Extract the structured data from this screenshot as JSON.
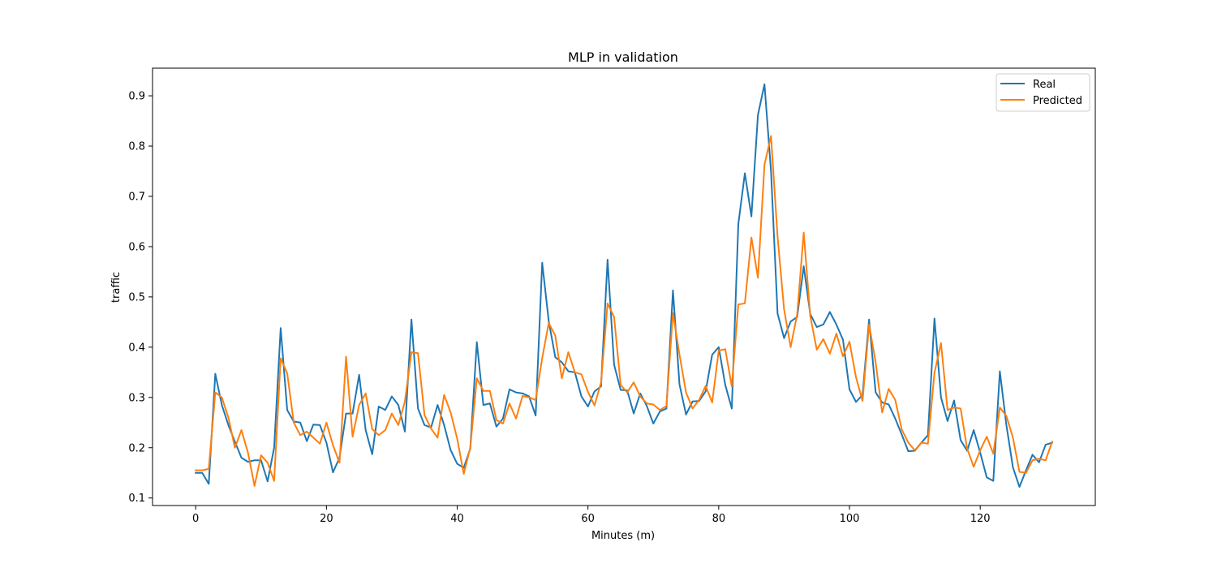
{
  "chart_data": {
    "type": "line",
    "title": "MLP in validation",
    "xlabel": "Minutes (m)",
    "ylabel": "traffic",
    "xlim": [
      -6.6,
      137.6
    ],
    "ylim": [
      0.085,
      0.955
    ],
    "xticks": [
      0,
      20,
      40,
      60,
      80,
      100,
      120
    ],
    "yticks": [
      0.1,
      0.2,
      0.3,
      0.4,
      0.5,
      0.6,
      0.7,
      0.8,
      0.9
    ],
    "legend_position": "top-right",
    "grid": false,
    "series": [
      {
        "name": "Real",
        "color": "#1f77b4",
        "values": [
          0.15,
          0.15,
          0.128,
          0.347,
          0.285,
          0.245,
          0.212,
          0.18,
          0.172,
          0.175,
          0.175,
          0.133,
          0.2,
          0.438,
          0.275,
          0.252,
          0.25,
          0.213,
          0.246,
          0.245,
          0.21,
          0.151,
          0.18,
          0.268,
          0.268,
          0.345,
          0.235,
          0.187,
          0.282,
          0.275,
          0.302,
          0.285,
          0.232,
          0.455,
          0.278,
          0.245,
          0.24,
          0.285,
          0.245,
          0.195,
          0.168,
          0.16,
          0.198,
          0.41,
          0.285,
          0.288,
          0.242,
          0.258,
          0.316,
          0.31,
          0.308,
          0.302,
          0.264,
          0.568,
          0.452,
          0.38,
          0.37,
          0.352,
          0.35,
          0.302,
          0.282,
          0.312,
          0.322,
          0.574,
          0.365,
          0.315,
          0.314,
          0.268,
          0.308,
          0.283,
          0.248,
          0.272,
          0.278,
          0.513,
          0.326,
          0.266,
          0.292,
          0.293,
          0.312,
          0.385,
          0.4,
          0.325,
          0.278,
          0.645,
          0.746,
          0.66,
          0.862,
          0.923,
          0.75,
          0.467,
          0.418,
          0.451,
          0.46,
          0.561,
          0.466,
          0.44,
          0.445,
          0.47,
          0.445,
          0.415,
          0.316,
          0.291,
          0.305,
          0.455,
          0.31,
          0.29,
          0.286,
          0.258,
          0.226,
          0.193,
          0.194,
          0.21,
          0.225,
          0.457,
          0.3,
          0.253,
          0.294,
          0.215,
          0.194,
          0.235,
          0.19,
          0.141,
          0.134,
          0.352,
          0.245,
          0.161,
          0.122,
          0.155,
          0.186,
          0.171,
          0.206,
          0.21
        ]
      },
      {
        "name": "Predicted",
        "color": "#ff7f0e",
        "values": [
          0.155,
          0.155,
          0.158,
          0.31,
          0.3,
          0.26,
          0.2,
          0.235,
          0.19,
          0.124,
          0.185,
          0.17,
          0.134,
          0.378,
          0.348,
          0.25,
          0.225,
          0.232,
          0.22,
          0.208,
          0.25,
          0.205,
          0.17,
          0.381,
          0.222,
          0.285,
          0.308,
          0.237,
          0.225,
          0.235,
          0.268,
          0.245,
          0.292,
          0.39,
          0.388,
          0.265,
          0.238,
          0.22,
          0.305,
          0.27,
          0.218,
          0.148,
          0.2,
          0.338,
          0.313,
          0.313,
          0.255,
          0.248,
          0.288,
          0.258,
          0.303,
          0.3,
          0.295,
          0.378,
          0.448,
          0.423,
          0.338,
          0.39,
          0.35,
          0.346,
          0.311,
          0.284,
          0.33,
          0.487,
          0.46,
          0.325,
          0.31,
          0.33,
          0.302,
          0.288,
          0.286,
          0.275,
          0.283,
          0.468,
          0.385,
          0.31,
          0.278,
          0.295,
          0.323,
          0.29,
          0.393,
          0.396,
          0.322,
          0.485,
          0.487,
          0.618,
          0.538,
          0.763,
          0.82,
          0.62,
          0.475,
          0.4,
          0.465,
          0.628,
          0.462,
          0.395,
          0.416,
          0.387,
          0.427,
          0.382,
          0.411,
          0.34,
          0.293,
          0.445,
          0.37,
          0.27,
          0.317,
          0.295,
          0.236,
          0.21,
          0.195,
          0.21,
          0.208,
          0.349,
          0.408,
          0.275,
          0.28,
          0.278,
          0.198,
          0.162,
          0.195,
          0.222,
          0.188,
          0.28,
          0.263,
          0.22,
          0.152,
          0.15,
          0.175,
          0.178,
          0.175,
          0.212
        ]
      }
    ]
  }
}
